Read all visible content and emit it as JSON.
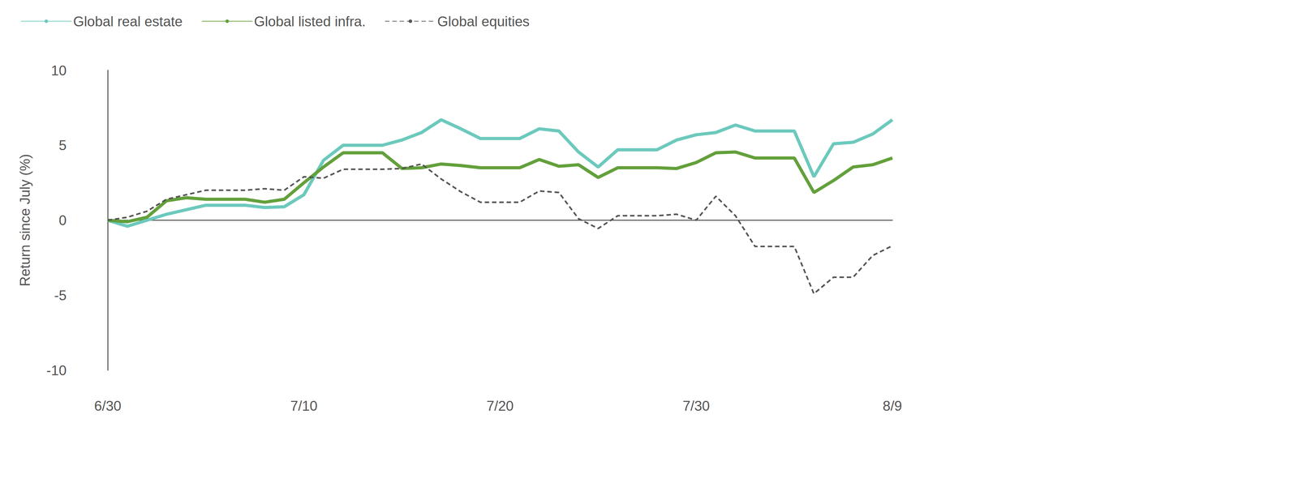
{
  "chart_data": {
    "type": "line",
    "y_label": "Return since July (%)",
    "categories": [
      "6/30",
      null,
      null,
      null,
      null,
      null,
      null,
      null,
      null,
      null,
      "7/10",
      null,
      null,
      null,
      null,
      null,
      null,
      null,
      null,
      null,
      "7/20",
      null,
      null,
      null,
      null,
      null,
      null,
      null,
      null,
      null,
      "7/30",
      null,
      null,
      null,
      null,
      null,
      null,
      null,
      null,
      null,
      "8/9"
    ],
    "series": [
      {
        "name": "Global real estate",
        "color": "#6cc9bd",
        "line_style": "solid",
        "values": [
          0,
          -0.4,
          0,
          0.4,
          0.7,
          1.0,
          1.0,
          1.0,
          0.85,
          0.9,
          1.7,
          4.0,
          5.0,
          5.0,
          5.0,
          5.35,
          5.85,
          6.7,
          6.1,
          5.45,
          5.45,
          5.45,
          6.1,
          5.95,
          4.55,
          3.55,
          4.7,
          4.7,
          4.7,
          5.35,
          5.7,
          5.85,
          6.35,
          5.95,
          5.95,
          5.95,
          2.9,
          5.1,
          5.2,
          5.75,
          6.7
        ]
      },
      {
        "name": "Global listed infra.",
        "color": "#63a03b",
        "line_style": "solid",
        "values": [
          0,
          -0.1,
          0.2,
          1.3,
          1.5,
          1.4,
          1.4,
          1.4,
          1.2,
          1.4,
          2.5,
          3.55,
          4.5,
          4.5,
          4.5,
          3.45,
          3.5,
          3.75,
          3.65,
          3.5,
          3.5,
          3.5,
          4.05,
          3.6,
          3.7,
          2.85,
          3.5,
          3.5,
          3.5,
          3.45,
          3.85,
          4.5,
          4.55,
          4.15,
          4.15,
          4.15,
          1.85,
          2.65,
          3.55,
          3.7,
          4.15
        ]
      },
      {
        "name": "Global equities",
        "color": "#555555",
        "line_style": "dashed",
        "values": [
          0,
          0.2,
          0.6,
          1.4,
          1.7,
          2.0,
          2.0,
          2.0,
          2.1,
          2.0,
          2.9,
          2.8,
          3.4,
          3.4,
          3.4,
          3.45,
          3.75,
          2.75,
          1.9,
          1.2,
          1.2,
          1.2,
          1.95,
          1.85,
          0.1,
          -0.55,
          0.3,
          0.3,
          0.3,
          0.4,
          0,
          1.6,
          0.3,
          -1.75,
          -1.75,
          -1.75,
          -4.9,
          -3.8,
          -3.8,
          -2.35,
          -1.7
        ]
      }
    ],
    "ylim": [
      -10,
      10
    ],
    "yticks": [
      -10,
      -5,
      0,
      5,
      10
    ],
    "grid": false,
    "legend": "top-left"
  }
}
